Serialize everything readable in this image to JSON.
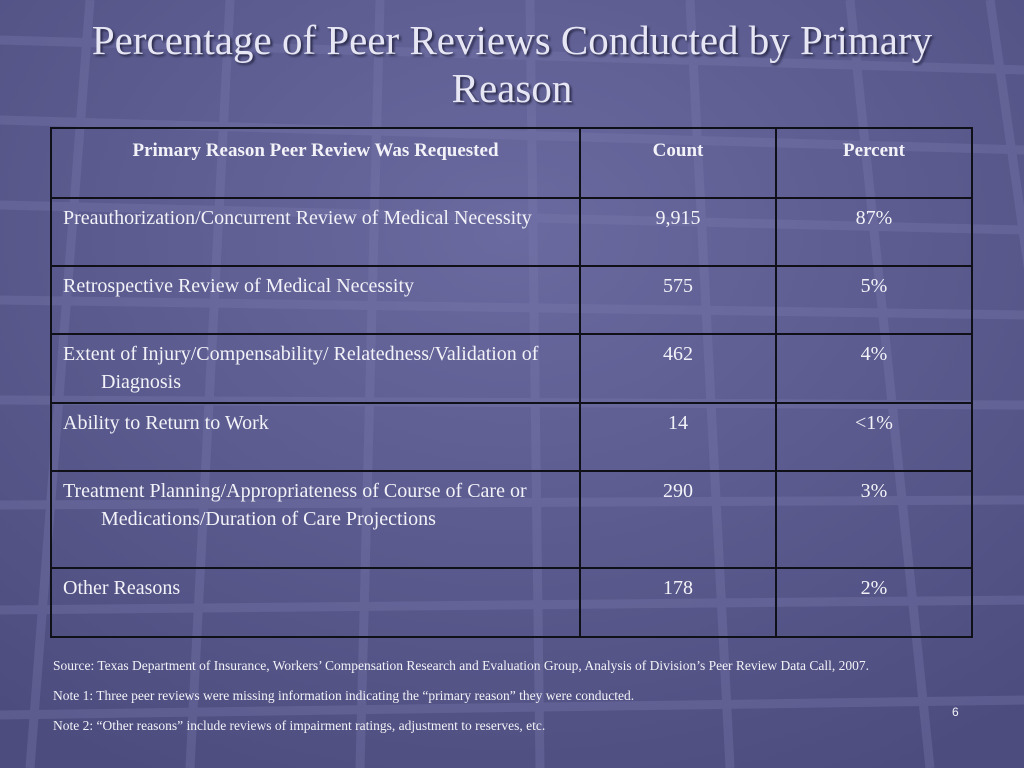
{
  "slide": {
    "title": "Percentage of Peer Reviews Conducted by Primary Reason",
    "page_number": "6"
  },
  "table": {
    "headers": [
      "Primary Reason Peer Review Was Requested",
      "Count",
      "Percent"
    ],
    "rows": [
      {
        "reason": "Preauthorization/Concurrent Review of Medical Necessity",
        "count": "9,915",
        "percent": "87%"
      },
      {
        "reason": "Retrospective Review of Medical Necessity",
        "count": "575",
        "percent": "5%"
      },
      {
        "reason": "Extent of Injury/Compensability/ Relatedness/Validation of Diagnosis",
        "count": "462",
        "percent": "4%"
      },
      {
        "reason": "Ability to Return to Work",
        "count": "14",
        "percent": "<1%"
      },
      {
        "reason": "Treatment Planning/Appropriateness of Course of Care or Medications/Duration of Care Projections",
        "count": "290",
        "percent": "3%"
      },
      {
        "reason": "Other Reasons",
        "count": "178",
        "percent": "2%"
      }
    ]
  },
  "notes": {
    "source": "Source: Texas Department of Insurance, Workers’ Compensation Research and Evaluation Group, Analysis of Division’s Peer Review Data Call, 2007.",
    "note1": "Note 1: Three peer reviews were missing information indicating the “primary reason” they were conducted.",
    "note2": "Note 2: “Other reasons” include reviews of impairment ratings, adjustment to reserves, etc."
  }
}
